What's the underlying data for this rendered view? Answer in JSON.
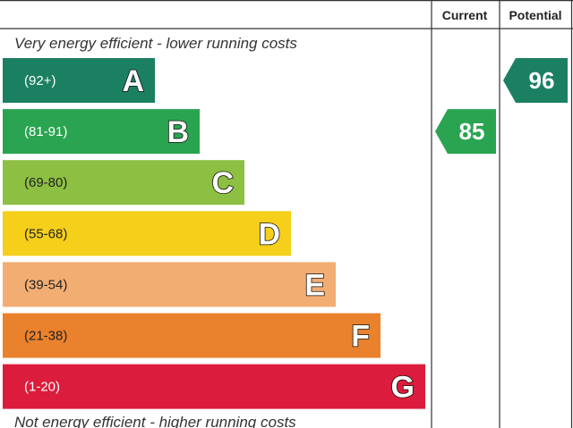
{
  "header": {
    "current_label": "Current",
    "potential_label": "Potential"
  },
  "notes": {
    "top": "Very energy efficient - lower running costs",
    "bottom": "Not energy efficient - higher running costs"
  },
  "chart_data": {
    "type": "bar",
    "categories": [
      "A",
      "B",
      "C",
      "D",
      "E",
      "F",
      "G"
    ],
    "ranges": [
      "(92+)",
      "(81-91)",
      "(69-80)",
      "(55-68)",
      "(39-54)",
      "(21-38)",
      "(1-20)"
    ],
    "colors": [
      "#1b8061",
      "#2aa450",
      "#8cbf42",
      "#f5cf1a",
      "#f2ad73",
      "#ea822d",
      "#dc1c3c"
    ],
    "current": {
      "value": 85,
      "band": "B",
      "color": "#2aa450"
    },
    "potential": {
      "value": 96,
      "band": "A",
      "color": "#1b8061"
    }
  }
}
